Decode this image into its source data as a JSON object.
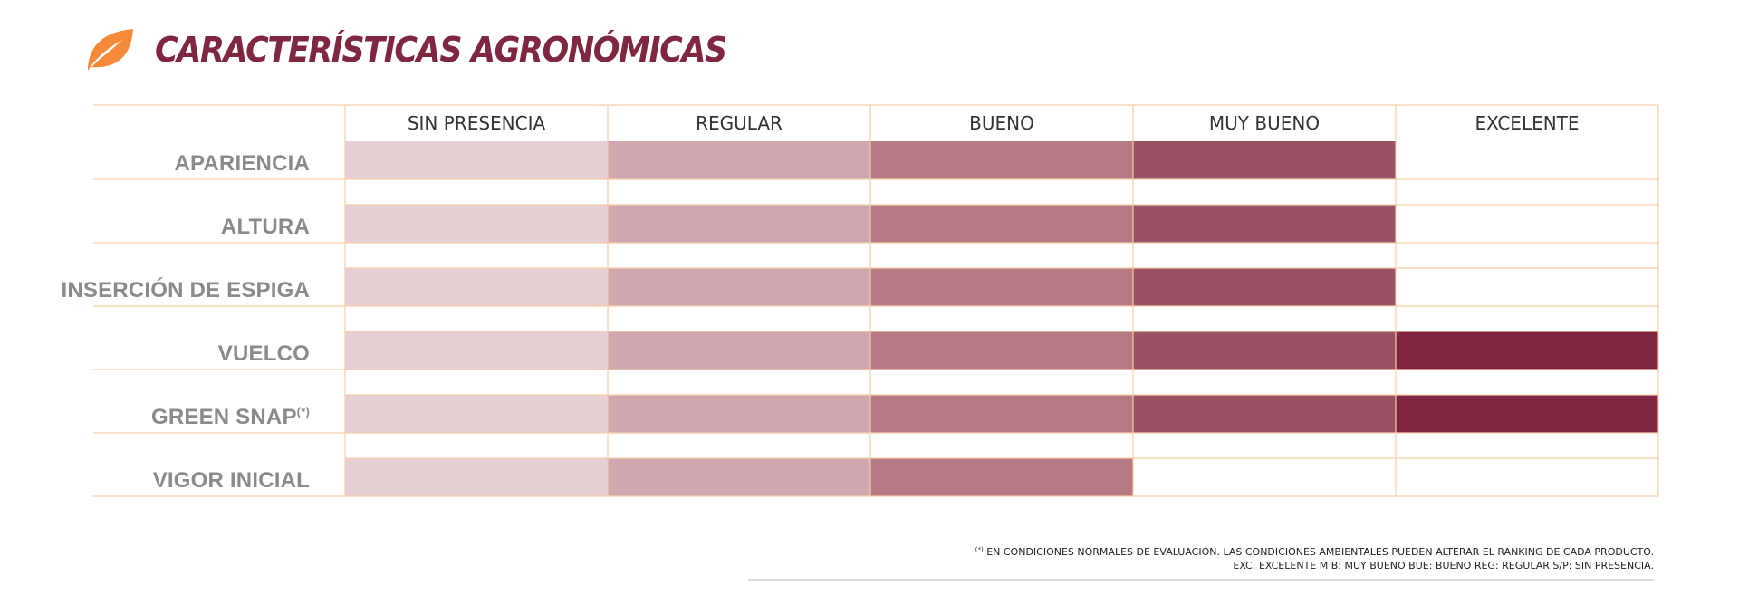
{
  "header": {
    "title": "CARACTERÍSTICAS AGRONÓMICAS",
    "icon": "leaf-icon",
    "icon_color": "#f58a3a"
  },
  "chart_data": {
    "type": "bar",
    "orientation": "horizontal",
    "scale_levels": [
      "SIN PRESENCIA",
      "REGULAR",
      "BUENO",
      "MUY BUENO",
      "EXCELENTE"
    ],
    "level_colors": [
      "#e5cfd2",
      "#d0a7ae",
      "#b57a84",
      "#9a5163",
      "#7f2641"
    ],
    "grid_color": "#f6cda9",
    "rows": [
      {
        "label": "APARIENCIA",
        "sup": "",
        "level": 4
      },
      {
        "label": "ALTURA",
        "sup": "",
        "level": 4
      },
      {
        "label": "INSERCIÓN DE ESPIGA",
        "sup": "",
        "level": 4
      },
      {
        "label": "VUELCO",
        "sup": "",
        "level": 5
      },
      {
        "label": "GREEN SNAP",
        "sup": "(*)",
        "level": 5
      },
      {
        "label": "VIGOR INICIAL",
        "sup": "",
        "level": 3
      }
    ]
  },
  "footnote": {
    "marker": "(*)",
    "line1": " EN CONDICIONES NORMALES DE EVALUACIÓN. LAS CONDICIONES AMBIENTALES PUEDEN ALTERAR EL RANKING DE CADA PRODUCTO.",
    "line2": "EXC: EXCELENTE M B: MUY BUENO BUE: BUENO REG: REGULAR S/P: SIN PRESENCIA."
  }
}
